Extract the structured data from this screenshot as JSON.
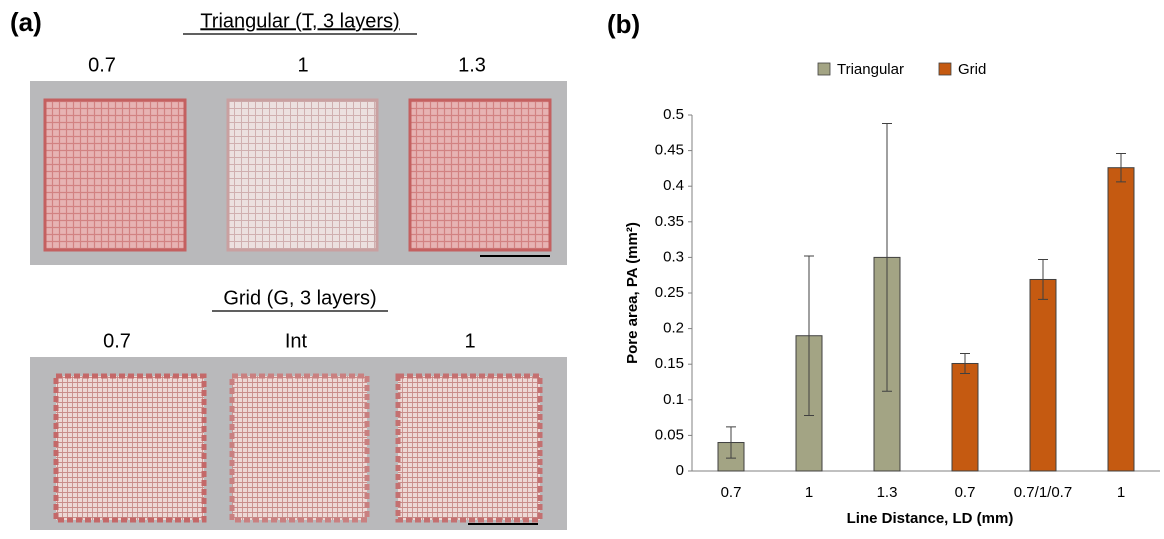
{
  "panel_a": {
    "label": "(a)",
    "sections": [
      {
        "title": "Triangular (T, 3 layers)",
        "samples": [
          "0.7",
          "1",
          "1.3"
        ]
      },
      {
        "title": "Grid (G, 3 layers)",
        "samples": [
          "0.7",
          "Int",
          "1"
        ]
      }
    ]
  },
  "panel_b_label": "(b)",
  "chart_data": {
    "type": "bar",
    "y_label": "Pore area, PA (mm²)",
    "x_label": "Line Distance, LD (mm)",
    "categories": [
      "0.7",
      "1",
      "1.3",
      "0.7",
      "0.7/1/0.7",
      "1"
    ],
    "series": [
      {
        "name": "Triangular",
        "color": "#a3a484",
        "values": [
          0.04,
          0.19,
          0.3,
          null,
          null,
          null
        ],
        "errors": [
          0.022,
          0.112,
          0.188,
          null,
          null,
          null
        ]
      },
      {
        "name": "Grid",
        "color": "#c55a11",
        "values": [
          null,
          null,
          null,
          0.151,
          0.269,
          0.426
        ],
        "errors": [
          null,
          null,
          null,
          0.014,
          0.028,
          0.02
        ]
      }
    ],
    "ylim": [
      0,
      0.5
    ],
    "yticks": [
      0,
      0.05,
      0.1,
      0.15,
      0.2,
      0.25,
      0.3,
      0.35,
      0.4,
      0.45,
      0.5
    ],
    "legend": "top",
    "grid": false
  }
}
